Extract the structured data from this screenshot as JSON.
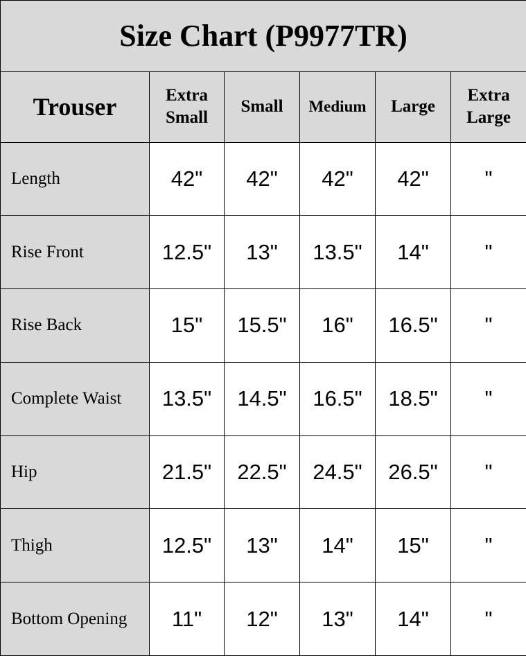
{
  "title": "Size Chart (P9977TR)",
  "header": {
    "first": "Trouser",
    "sizes": [
      "Extra\nSmall",
      "Small",
      "Medium",
      "Large",
      "Extra\nLarge"
    ]
  },
  "rows": [
    {
      "label": "Length",
      "values": [
        "42\"",
        "42\"",
        "42\"",
        "42\"",
        "\""
      ]
    },
    {
      "label": "Rise Front",
      "values": [
        "12.5\"",
        "13\"",
        "13.5\"",
        "14\"",
        "\""
      ]
    },
    {
      "label": "Rise Back",
      "values": [
        "15\"",
        "15.5\"",
        "16\"",
        "16.5\"",
        "\""
      ]
    },
    {
      "label": "Complete Waist",
      "values": [
        "13.5\"",
        "14.5\"",
        "16.5\"",
        "18.5\"",
        "\""
      ]
    },
    {
      "label": "Hip",
      "values": [
        "21.5\"",
        "22.5\"",
        "24.5\"",
        "26.5\"",
        "\""
      ]
    },
    {
      "label": "Thigh",
      "values": [
        "12.5\"",
        "13\"",
        "14\"",
        "15\"",
        "\""
      ]
    },
    {
      "label": "Bottom Opening",
      "values": [
        "11\"",
        "12\"",
        "13\"",
        "14\"",
        "\""
      ]
    }
  ],
  "colors": {
    "header_bg": "#d9d9d9",
    "cell_bg": "#ffffff",
    "border": "#000000"
  }
}
